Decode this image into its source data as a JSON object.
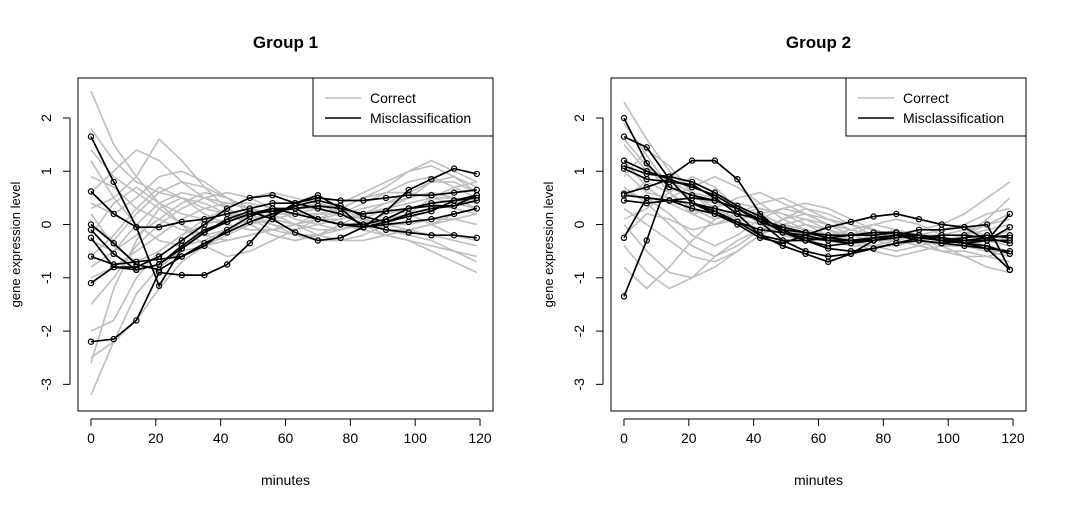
{
  "chart_data": [
    {
      "type": "line",
      "title": "Group 1",
      "xlabel": "minutes",
      "ylabel": "gene expression level",
      "xlim": [
        -4,
        124
      ],
      "ylim": [
        -3.5,
        2.75
      ],
      "xticks": [
        "0",
        "20",
        "40",
        "60",
        "80",
        "100",
        "120"
      ],
      "yticks": [
        "-3",
        "-2",
        "-1",
        "0",
        "1",
        "2"
      ],
      "x": [
        0,
        7,
        14,
        21,
        28,
        35,
        42,
        49,
        56,
        63,
        70,
        77,
        84,
        91,
        98,
        105,
        112,
        119
      ],
      "legend": {
        "position": "top-right",
        "entries": [
          "Correct",
          "Misclassification"
        ]
      },
      "colors": {
        "correct": "#bebebe",
        "misclassification": "#000000"
      },
      "correct_series": [
        [
          2.5,
          1.5,
          0.9,
          0.4,
          0.2,
          0.1,
          0.0,
          -0.1,
          -0.1,
          0.0,
          0.1,
          0.2,
          0.3,
          0.4,
          0.5,
          0.6,
          0.5,
          0.4
        ],
        [
          1.8,
          1.2,
          0.8,
          0.6,
          0.5,
          0.3,
          0.2,
          0.1,
          0.0,
          -0.1,
          0.0,
          0.1,
          0.2,
          0.3,
          0.5,
          0.8,
          0.9,
          0.7
        ],
        [
          1.4,
          0.9,
          0.6,
          0.3,
          0.0,
          -0.2,
          -0.3,
          -0.2,
          -0.1,
          0.0,
          0.1,
          0.2,
          0.4,
          0.6,
          0.8,
          0.9,
          0.7,
          0.5
        ],
        [
          0.9,
          0.7,
          0.3,
          0.1,
          -0.1,
          -0.2,
          -0.1,
          0.0,
          0.2,
          0.3,
          0.4,
          0.3,
          0.1,
          -0.1,
          -0.2,
          -0.3,
          -0.5,
          -0.7
        ],
        [
          0.6,
          1.0,
          1.4,
          1.2,
          0.8,
          0.5,
          0.4,
          0.3,
          0.2,
          0.2,
          0.3,
          0.4,
          0.6,
          0.8,
          1.0,
          1.1,
          0.9,
          0.6
        ],
        [
          0.3,
          0.5,
          0.9,
          1.6,
          1.2,
          0.7,
          0.3,
          0.0,
          -0.2,
          -0.3,
          -0.2,
          0.0,
          0.2,
          0.4,
          0.6,
          0.8,
          0.8,
          0.6
        ],
        [
          0.0,
          -0.3,
          0.2,
          0.6,
          0.8,
          0.7,
          0.5,
          0.3,
          0.1,
          0.0,
          -0.1,
          -0.1,
          0.0,
          0.2,
          0.3,
          0.4,
          0.3,
          0.2
        ],
        [
          -0.3,
          -0.5,
          -0.2,
          0.1,
          0.4,
          0.6,
          0.5,
          0.3,
          0.2,
          0.0,
          -0.2,
          -0.3,
          -0.3,
          -0.2,
          -0.1,
          0.0,
          0.1,
          0.2
        ],
        [
          -0.6,
          -0.2,
          0.3,
          0.7,
          0.5,
          0.2,
          0.0,
          -0.1,
          -0.1,
          0.0,
          0.2,
          0.3,
          0.5,
          0.7,
          1.0,
          1.2,
          1.0,
          0.8
        ],
        [
          -1.0,
          -0.8,
          -0.5,
          -0.2,
          0.1,
          0.3,
          0.4,
          0.4,
          0.3,
          0.2,
          0.1,
          0.0,
          -0.1,
          -0.2,
          -0.3,
          -0.5,
          -0.7,
          -0.9
        ],
        [
          -1.5,
          -1.0,
          -0.4,
          0.0,
          0.3,
          0.5,
          0.6,
          0.5,
          0.3,
          0.1,
          0.0,
          -0.1,
          0.0,
          0.1,
          0.2,
          0.3,
          0.4,
          0.5
        ],
        [
          -2.0,
          -1.8,
          -1.0,
          -0.5,
          -0.2,
          0.0,
          0.1,
          0.2,
          0.3,
          0.3,
          0.3,
          0.2,
          0.1,
          0.0,
          -0.1,
          -0.2,
          -0.3,
          -0.4
        ],
        [
          -2.5,
          -2.2,
          -1.8,
          -1.2,
          -0.7,
          -0.4,
          -0.2,
          0.0,
          0.1,
          0.2,
          0.2,
          0.2,
          0.1,
          0.0,
          0.0,
          0.1,
          0.1,
          0.0
        ],
        [
          -3.2,
          -2.2,
          -1.3,
          -0.8,
          -0.5,
          -0.4,
          -0.3,
          -0.2,
          -0.1,
          0.0,
          0.1,
          0.1,
          0.2,
          0.3,
          0.4,
          0.5,
          0.5,
          0.4
        ],
        [
          -2.6,
          -1.2,
          -0.3,
          0.3,
          0.5,
          0.4,
          0.2,
          0.0,
          -0.2,
          -0.3,
          -0.2,
          0.0,
          0.2,
          0.3,
          0.2,
          0.0,
          -0.2,
          -0.3
        ],
        [
          0.4,
          0.2,
          0.5,
          0.9,
          1.0,
          0.8,
          0.5,
          0.2,
          0.0,
          -0.2,
          -0.3,
          -0.3,
          -0.2,
          0.0,
          0.2,
          0.5,
          0.7,
          0.8
        ],
        [
          -0.2,
          0.4,
          0.7,
          0.4,
          0.0,
          -0.4,
          -0.6,
          -0.5,
          -0.3,
          -0.1,
          0.1,
          0.3,
          0.5,
          0.6,
          0.6,
          0.5,
          0.4,
          0.3
        ],
        [
          0.2,
          -0.4,
          -0.7,
          -0.5,
          -0.2,
          0.1,
          0.3,
          0.5,
          0.6,
          0.5,
          0.4,
          0.2,
          0.0,
          -0.2,
          -0.3,
          -0.4,
          -0.5,
          -0.6
        ],
        [
          -0.8,
          -0.5,
          0.0,
          0.4,
          0.6,
          0.5,
          0.3,
          0.1,
          -0.1,
          -0.2,
          -0.2,
          -0.1,
          0.1,
          0.3,
          0.5,
          0.6,
          0.5,
          0.3
        ],
        [
          1.2,
          0.5,
          0.0,
          -0.3,
          -0.4,
          -0.3,
          -0.1,
          0.1,
          0.2,
          0.3,
          0.3,
          0.2,
          0.0,
          -0.1,
          -0.1,
          0.0,
          0.2,
          0.3
        ]
      ],
      "misclassified_series": [
        [
          1.65,
          0.8,
          -0.05,
          -1.15,
          -0.45,
          -0.15,
          0.05,
          0.2,
          0.25,
          0.3,
          0.35,
          0.3,
          0.2,
          0.25,
          0.3,
          0.4,
          0.45,
          0.55
        ],
        [
          0.62,
          0.2,
          -0.05,
          -0.05,
          0.05,
          0.1,
          0.2,
          0.3,
          0.4,
          0.4,
          0.5,
          0.45,
          0.45,
          0.5,
          0.55,
          0.55,
          0.6,
          0.65
        ],
        [
          0.0,
          -0.35,
          -0.75,
          -0.85,
          -0.6,
          -0.35,
          -0.15,
          0.05,
          0.2,
          0.35,
          0.45,
          0.35,
          0.15,
          0.05,
          0.15,
          0.25,
          0.45,
          0.5
        ],
        [
          -0.1,
          -0.55,
          -0.85,
          -0.75,
          -0.4,
          -0.1,
          0.05,
          0.2,
          0.3,
          0.3,
          0.1,
          0.0,
          0.0,
          0.1,
          0.3,
          0.35,
          0.35,
          0.45
        ],
        [
          -0.6,
          -0.75,
          -0.7,
          -0.65,
          -0.6,
          -0.4,
          -0.1,
          0.15,
          0.3,
          0.2,
          0.1,
          0.0,
          -0.05,
          0.0,
          0.05,
          0.1,
          0.2,
          0.3
        ],
        [
          -1.1,
          -0.8,
          -0.8,
          -0.6,
          -0.3,
          0.0,
          0.3,
          0.5,
          0.55,
          0.4,
          0.3,
          0.2,
          0.0,
          -0.1,
          -0.15,
          -0.2,
          -0.2,
          -0.25
        ],
        [
          -2.2,
          -2.15,
          -1.8,
          -0.9,
          -0.95,
          -0.95,
          -0.75,
          -0.35,
          0.15,
          0.4,
          0.55,
          0.3,
          -0.05,
          0.05,
          0.2,
          0.3,
          0.35,
          0.55
        ],
        [
          -0.25,
          -0.8,
          -0.85,
          -0.75,
          -0.45,
          -0.15,
          0.1,
          0.25,
          0.1,
          -0.15,
          -0.3,
          -0.25,
          -0.05,
          0.25,
          0.65,
          0.85,
          1.05,
          0.95
        ]
      ]
    },
    {
      "type": "line",
      "title": "Group 2",
      "xlabel": "minutes",
      "ylabel": "gene expression level",
      "xlim": [
        -4,
        124
      ],
      "ylim": [
        -3.5,
        2.75
      ],
      "xticks": [
        "0",
        "20",
        "40",
        "60",
        "80",
        "100",
        "120"
      ],
      "yticks": [
        "-3",
        "-2",
        "-1",
        "0",
        "1",
        "2"
      ],
      "x": [
        0,
        7,
        14,
        21,
        28,
        35,
        42,
        49,
        56,
        63,
        70,
        77,
        84,
        91,
        98,
        105,
        112,
        119
      ],
      "legend": {
        "position": "top-right",
        "entries": [
          "Correct",
          "Misclassification"
        ]
      },
      "colors": {
        "correct": "#bebebe",
        "misclassification": "#000000"
      },
      "correct_series": [
        [
          2.3,
          1.6,
          1.0,
          0.6,
          0.3,
          0.1,
          0.0,
          -0.1,
          -0.2,
          -0.2,
          -0.3,
          -0.3,
          -0.2,
          -0.3,
          -0.4,
          -0.4,
          -0.5,
          -0.6
        ],
        [
          1.9,
          1.3,
          0.7,
          0.5,
          0.4,
          0.3,
          0.2,
          0.0,
          -0.1,
          -0.2,
          -0.1,
          0.0,
          -0.1,
          -0.2,
          -0.3,
          -0.2,
          0.0,
          0.2
        ],
        [
          1.5,
          1.0,
          0.8,
          0.6,
          0.5,
          0.4,
          0.3,
          0.2,
          0.0,
          -0.2,
          -0.3,
          -0.4,
          -0.4,
          -0.3,
          -0.2,
          -0.2,
          -0.3,
          -0.4
        ],
        [
          1.2,
          0.7,
          0.4,
          0.2,
          0.3,
          0.5,
          0.6,
          0.4,
          0.2,
          0.0,
          -0.2,
          -0.3,
          -0.3,
          -0.4,
          -0.5,
          -0.5,
          -0.6,
          -0.7
        ],
        [
          0.9,
          1.4,
          1.1,
          0.6,
          0.2,
          0.0,
          -0.1,
          -0.1,
          0.0,
          -0.1,
          -0.2,
          -0.3,
          -0.2,
          -0.1,
          0.0,
          0.2,
          0.5,
          0.8
        ],
        [
          0.6,
          0.5,
          0.2,
          -0.2,
          -0.4,
          -0.2,
          0.1,
          0.3,
          0.4,
          0.3,
          0.1,
          -0.1,
          -0.2,
          -0.3,
          -0.4,
          -0.4,
          -0.3,
          -0.1
        ],
        [
          0.3,
          0.0,
          -0.3,
          -0.6,
          -0.7,
          -0.5,
          -0.2,
          0.1,
          0.3,
          0.2,
          0.0,
          -0.2,
          -0.3,
          -0.2,
          -0.1,
          0.0,
          0.2,
          0.3
        ],
        [
          0.0,
          -0.5,
          -0.9,
          -1.0,
          -0.8,
          -0.5,
          -0.2,
          0.0,
          0.1,
          0.0,
          -0.1,
          -0.2,
          -0.3,
          -0.4,
          -0.3,
          -0.2,
          -0.1,
          0.0
        ],
        [
          -0.4,
          -0.9,
          -1.2,
          -1.0,
          -0.6,
          -0.3,
          -0.1,
          0.0,
          -0.1,
          -0.2,
          -0.3,
          -0.4,
          -0.5,
          -0.4,
          -0.3,
          -0.3,
          -0.4,
          -0.5
        ],
        [
          -0.8,
          -1.2,
          -0.8,
          -0.3,
          0.1,
          0.3,
          0.2,
          0.0,
          -0.2,
          -0.3,
          -0.3,
          -0.2,
          -0.1,
          -0.2,
          -0.3,
          -0.4,
          -0.5,
          -0.6
        ],
        [
          0.5,
          0.8,
          0.6,
          0.3,
          0.1,
          0.2,
          0.4,
          0.5,
          0.3,
          0.1,
          0.0,
          -0.1,
          -0.2,
          -0.3,
          -0.4,
          -0.6,
          -0.8,
          -0.9
        ],
        [
          1.0,
          0.6,
          0.5,
          0.7,
          0.9,
          0.7,
          0.4,
          0.1,
          -0.1,
          -0.3,
          -0.4,
          -0.4,
          -0.3,
          -0.2,
          -0.2,
          -0.1,
          0.0,
          0.1
        ],
        [
          0.1,
          0.3,
          0.6,
          0.9,
          0.7,
          0.3,
          0.0,
          -0.2,
          -0.3,
          -0.3,
          -0.2,
          0.0,
          0.1,
          0.0,
          -0.2,
          -0.4,
          -0.5,
          -0.5
        ],
        [
          -0.2,
          0.2,
          0.1,
          -0.1,
          0.0,
          0.2,
          0.3,
          0.2,
          0.1,
          -0.1,
          -0.3,
          -0.5,
          -0.6,
          -0.5,
          -0.4,
          -0.2,
          0.1,
          0.5
        ],
        [
          0.7,
          0.4,
          0.0,
          -0.4,
          -0.6,
          -0.4,
          -0.1,
          0.1,
          0.2,
          0.1,
          -0.1,
          -0.2,
          -0.2,
          -0.3,
          -0.5,
          -0.6,
          -0.6,
          -0.5
        ],
        [
          1.6,
          1.1,
          0.6,
          0.2,
          0.0,
          0.1,
          0.2,
          0.3,
          0.2,
          0.0,
          -0.2,
          -0.3,
          -0.4,
          -0.3,
          -0.2,
          -0.1,
          -0.2,
          -0.3
        ]
      ],
      "misclassified_series": [
        [
          -1.35,
          -0.3,
          0.9,
          1.2,
          1.2,
          0.85,
          0.2,
          -0.15,
          -0.25,
          -0.3,
          -0.3,
          -0.25,
          -0.2,
          -0.3,
          -0.35,
          -0.3,
          -0.25,
          -0.2
        ],
        [
          2.0,
          1.15,
          0.7,
          0.55,
          0.45,
          0.3,
          0.05,
          -0.1,
          -0.15,
          -0.2,
          -0.2,
          -0.2,
          -0.15,
          -0.2,
          -0.25,
          -0.3,
          -0.3,
          -0.3
        ],
        [
          1.65,
          1.45,
          0.85,
          0.4,
          0.3,
          0.2,
          0.1,
          -0.05,
          -0.15,
          -0.25,
          -0.3,
          -0.3,
          -0.25,
          -0.2,
          -0.25,
          -0.35,
          -0.45,
          -0.85
        ],
        [
          1.2,
          1.0,
          0.85,
          0.7,
          0.55,
          0.3,
          0.05,
          -0.3,
          -0.5,
          -0.6,
          -0.55,
          -0.45,
          -0.35,
          -0.25,
          -0.2,
          -0.2,
          -0.25,
          -0.35
        ],
        [
          1.1,
          0.95,
          0.9,
          0.8,
          0.6,
          0.35,
          0.15,
          -0.1,
          -0.3,
          -0.45,
          -0.5,
          -0.45,
          -0.35,
          -0.3,
          -0.35,
          -0.4,
          -0.45,
          -0.5
        ],
        [
          1.05,
          0.85,
          0.8,
          0.75,
          0.5,
          0.2,
          -0.2,
          -0.3,
          -0.3,
          -0.25,
          -0.2,
          -0.15,
          -0.15,
          -0.2,
          -0.3,
          -0.35,
          -0.4,
          -0.55
        ],
        [
          0.58,
          0.7,
          0.85,
          0.4,
          0.2,
          0.0,
          -0.25,
          -0.35,
          -0.2,
          -0.05,
          0.05,
          0.15,
          0.2,
          0.1,
          0.0,
          -0.05,
          -0.3,
          0.2
        ],
        [
          0.55,
          0.5,
          0.45,
          0.4,
          0.25,
          0.05,
          -0.2,
          -0.4,
          -0.55,
          -0.7,
          -0.55,
          -0.3,
          -0.2,
          -0.25,
          -0.3,
          -0.25,
          -0.2,
          -0.25
        ],
        [
          0.45,
          0.4,
          0.45,
          0.5,
          0.45,
          0.3,
          0.1,
          -0.15,
          -0.3,
          -0.4,
          -0.35,
          -0.25,
          -0.2,
          -0.2,
          -0.3,
          -0.35,
          -0.3,
          -0.05
        ],
        [
          -0.25,
          0.5,
          0.45,
          0.3,
          0.2,
          0.05,
          -0.1,
          -0.15,
          -0.2,
          -0.3,
          -0.35,
          -0.3,
          -0.2,
          -0.1,
          -0.1,
          -0.05,
          0.0,
          -0.85
        ]
      ]
    }
  ]
}
